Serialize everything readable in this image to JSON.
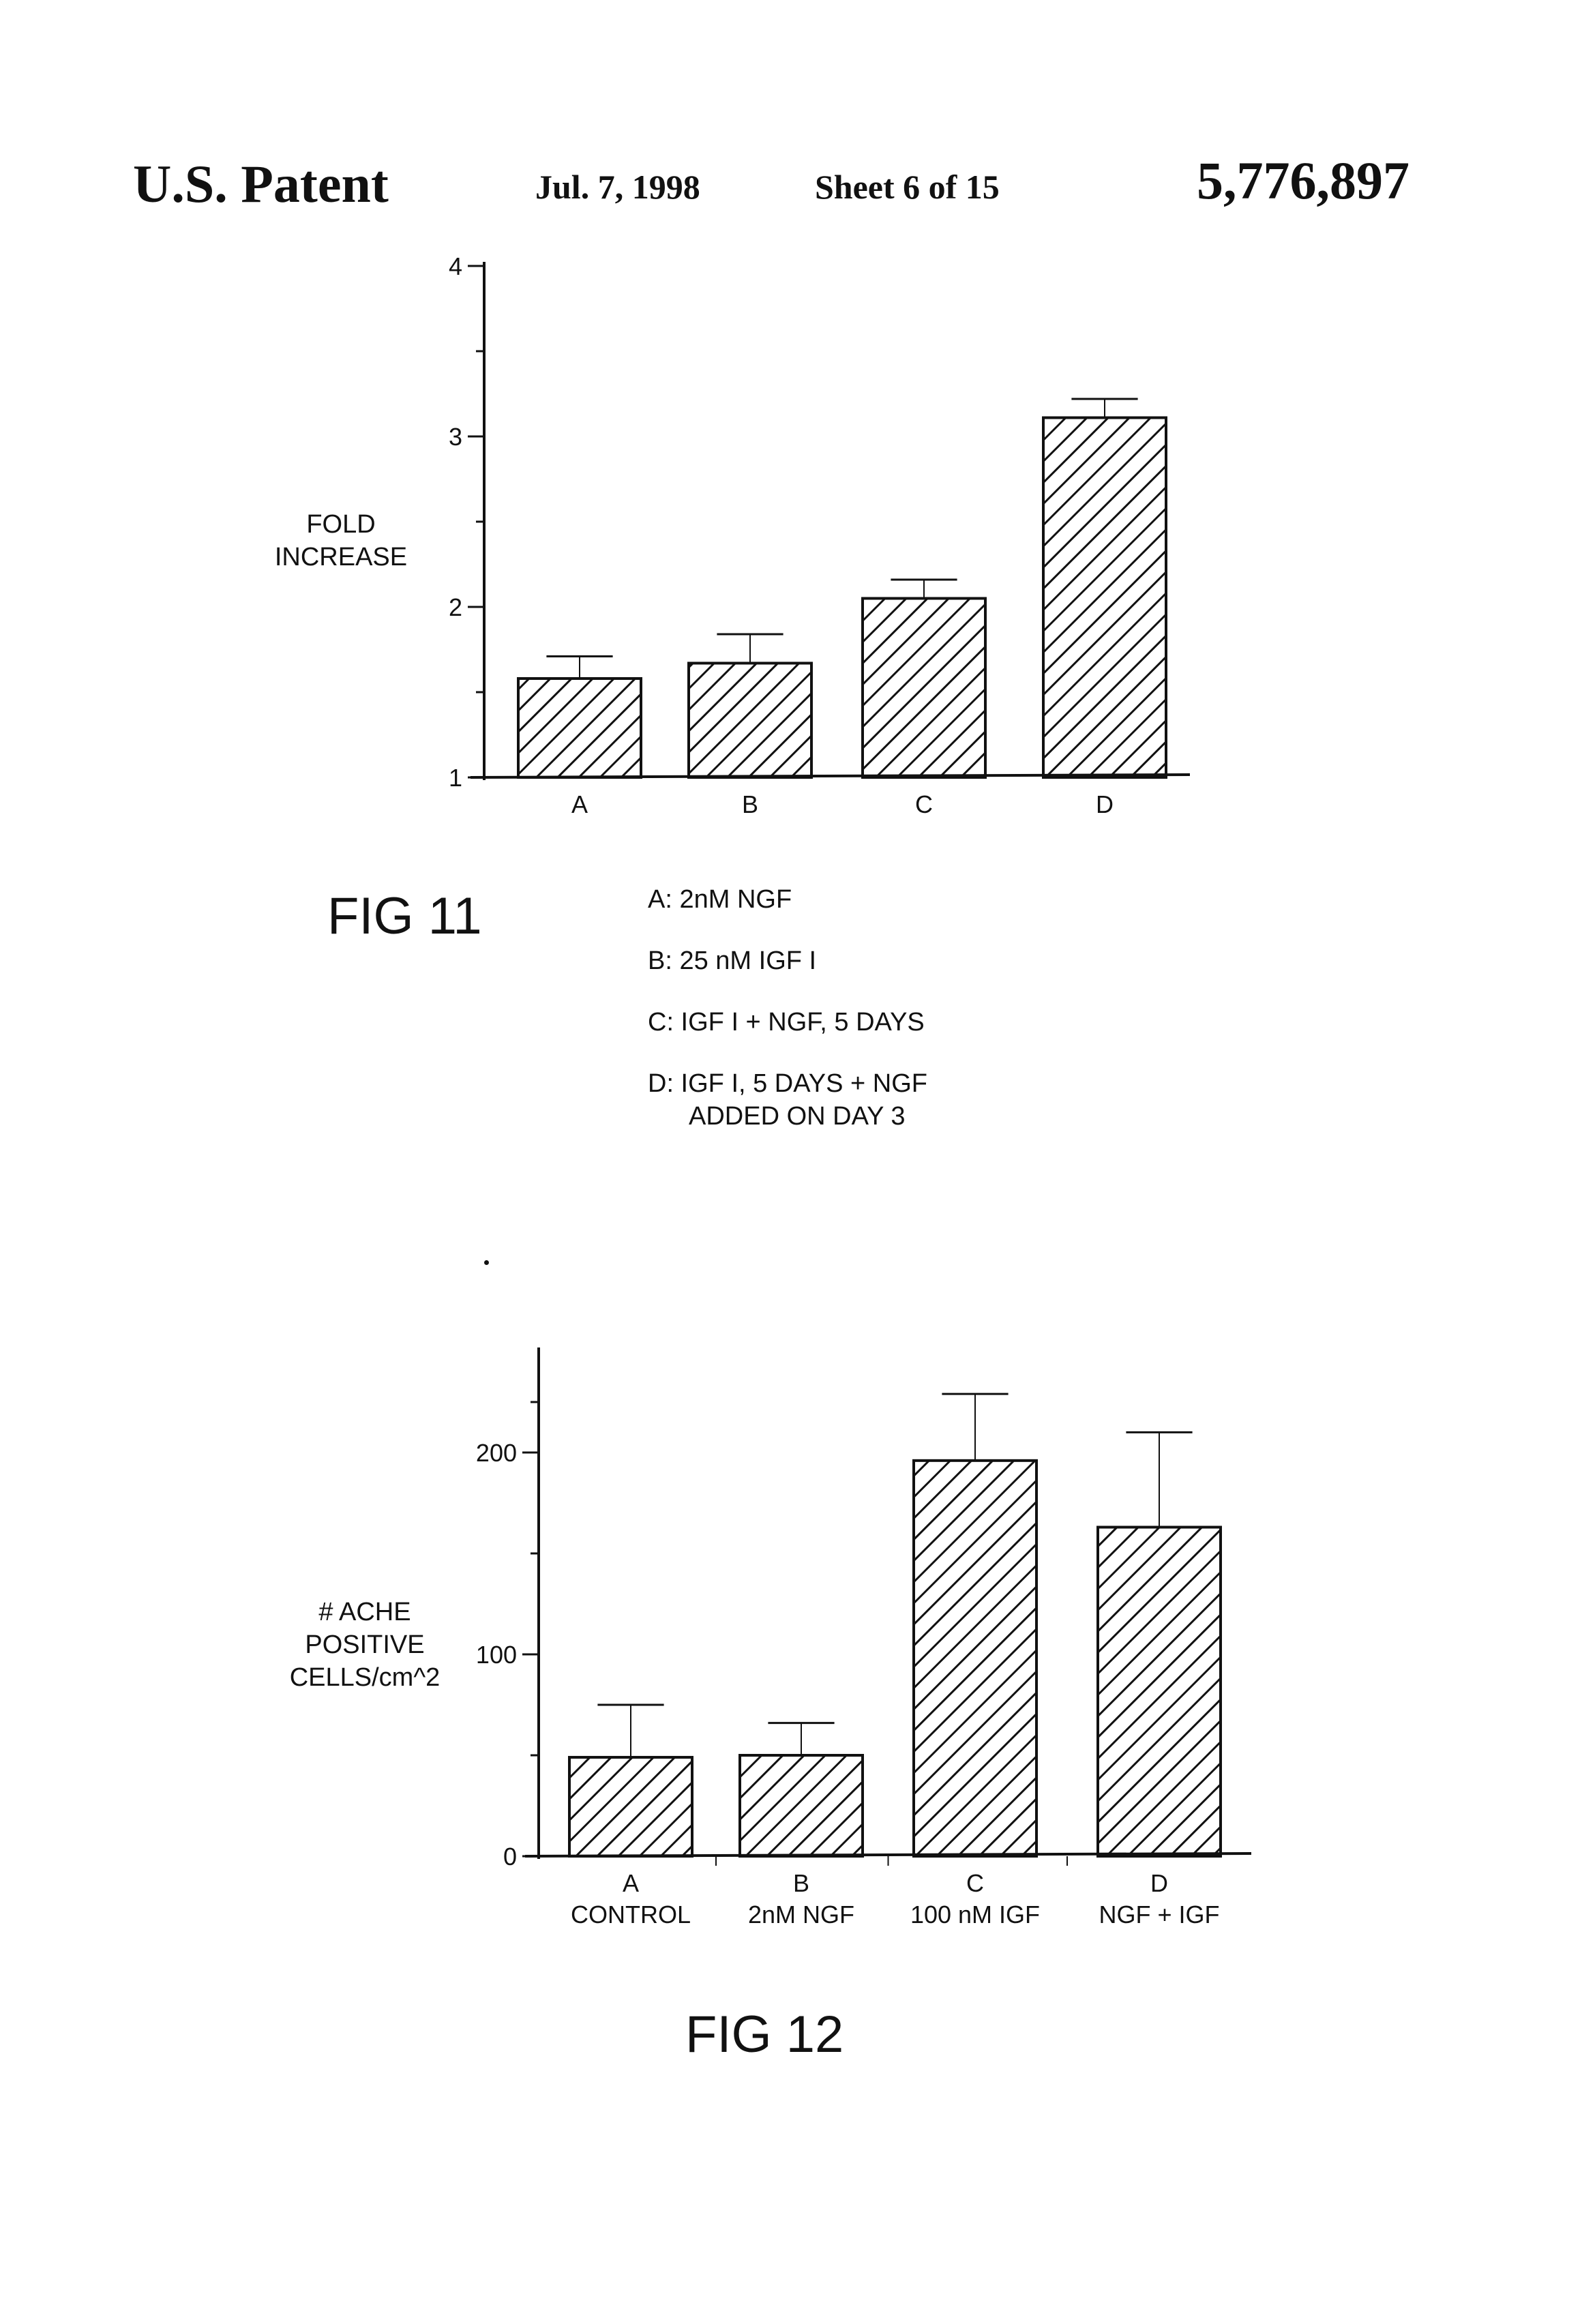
{
  "header": {
    "title": "U.S. Patent",
    "date": "Jul. 7, 1998",
    "sheet": "Sheet 6 of 15",
    "patent_number": "5,776,897"
  },
  "fig11": {
    "label": "FIG 11",
    "ylabel_lines": [
      "FOLD",
      "INCREASE"
    ],
    "legend": [
      "A: 2nM NGF",
      "B: 25 nM IGF I",
      "C: IGF I + NGF, 5 DAYS",
      "D: IGF I, 5 DAYS + NGF",
      "ADDED ON DAY 3"
    ]
  },
  "fig12": {
    "label": "FIG 12",
    "ylabel_lines": [
      "# ACHE",
      "POSITIVE",
      "CELLS/cm^2"
    ]
  },
  "chart_data": [
    {
      "type": "bar",
      "title": "",
      "xlabel": "",
      "ylabel": "FOLD INCREASE",
      "categories": [
        "A",
        "B",
        "C",
        "D"
      ],
      "values": [
        1.58,
        1.67,
        2.05,
        3.11
      ],
      "error_upper": [
        1.71,
        1.84,
        2.16,
        3.22
      ],
      "yticks": [
        "1",
        "2",
        "3",
        "4"
      ],
      "ylim": [
        1,
        4
      ],
      "grid": false,
      "legend": "none",
      "pattern": "diagonal-hatch"
    },
    {
      "type": "bar",
      "title": "",
      "xlabel": "",
      "ylabel": "# ACHE POSITIVE CELLS/cm^2",
      "categories": [
        "A",
        "B",
        "C",
        "D"
      ],
      "category_sublabels": [
        "CONTROL",
        "2nM NGF",
        "100 nM IGF",
        "NGF + IGF"
      ],
      "values": [
        49,
        50,
        196,
        163
      ],
      "error_upper": [
        75,
        66,
        229,
        210
      ],
      "yticks": [
        "0",
        "100",
        "200"
      ],
      "ylim": [
        0,
        250
      ],
      "grid": false,
      "legend": "none",
      "pattern": "diagonal-hatch"
    }
  ]
}
